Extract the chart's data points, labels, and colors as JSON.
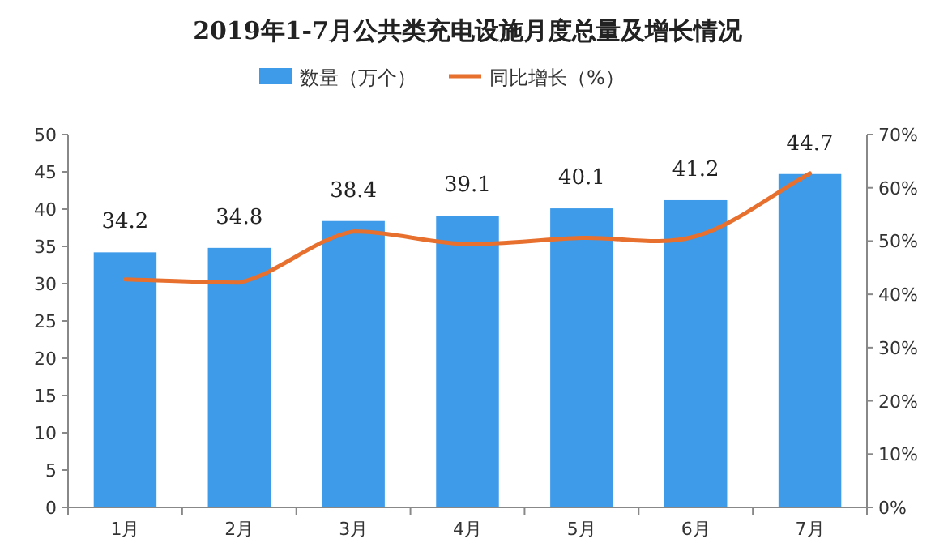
{
  "chart_data": {
    "type": "bar",
    "title": "2019年1-7月公共类充电设施月度总量及增长情况",
    "categories": [
      "1月",
      "2月",
      "3月",
      "4月",
      "5月",
      "6月",
      "7月"
    ],
    "series": [
      {
        "name": "数量（万个）",
        "color": "#3d9be9",
        "values": [
          34.2,
          34.8,
          38.4,
          39.1,
          40.1,
          41.2,
          44.7
        ],
        "data_labels": true
      },
      {
        "name": "同比增长（%）",
        "type": "line",
        "axis": "y2",
        "color": "#e8702f",
        "values": [
          42.8,
          42.2,
          51.8,
          49.4,
          50.6,
          50.9,
          62.7
        ],
        "marker": "none"
      }
    ],
    "ylim": [
      0,
      50
    ],
    "yticks": [
      0,
      5,
      10,
      15,
      20,
      25,
      30,
      35,
      40,
      45,
      50
    ],
    "y2lim": [
      0,
      70
    ],
    "y2ticks": [
      {
        "value": 0,
        "label": "0%"
      },
      {
        "value": 10,
        "label": "10%"
      },
      {
        "value": 20,
        "label": "20%"
      },
      {
        "value": 30,
        "label": "30%"
      },
      {
        "value": 40,
        "label": "40%"
      },
      {
        "value": 50,
        "label": "50%"
      },
      {
        "value": 60,
        "label": "60%"
      },
      {
        "value": 70,
        "label": "70%"
      }
    ],
    "legend": "top",
    "grid": false
  }
}
